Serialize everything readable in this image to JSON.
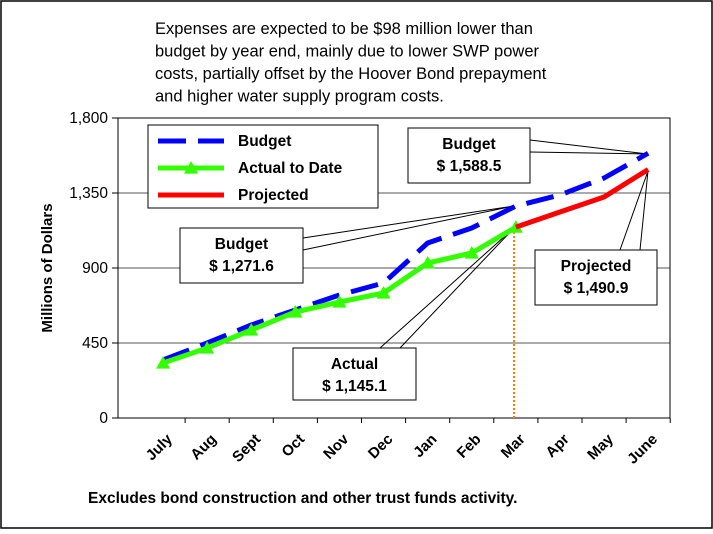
{
  "chart_data": {
    "type": "line",
    "title": [
      "Expenses are expected to be $98 million lower than",
      "budget by year end, mainly due to lower SWP power",
      "costs, partially offset by the Hoover Bond prepayment",
      "and higher water supply program costs."
    ],
    "y_label": "Millions of Dollars",
    "footnote": "Excludes bond construction and other trust funds activity.",
    "categories": [
      "July",
      "Aug",
      "Sept",
      "Oct",
      "Nov",
      "Dec",
      "Jan",
      "Feb",
      "Mar",
      "Apr",
      "May",
      "June"
    ],
    "ylim": [
      0,
      1800
    ],
    "yticks": [
      0,
      450,
      900,
      {
        "value": 1350,
        "label": "1,350"
      },
      {
        "value": 1800,
        "label": "1,800"
      }
    ],
    "grid": true,
    "series": [
      {
        "name": "Budget",
        "color": "#0000ff",
        "dashed": true,
        "values": [
          348,
          450,
          558,
          648,
          738,
          810,
          1050,
          1140,
          1271.6,
          1338,
          1440,
          1588.5
        ]
      },
      {
        "name": "Actual to Date",
        "color": "#33ff00",
        "marker": "triangle",
        "values": [
          330,
          420,
          528,
          636,
          696,
          750,
          930,
          990,
          1145.1,
          null,
          null,
          null
        ]
      },
      {
        "name": "Projected",
        "color": "#ff0000",
        "values": [
          null,
          null,
          null,
          null,
          null,
          null,
          null,
          null,
          1145.1,
          1236,
          1326,
          1490.9
        ]
      }
    ],
    "annotations": [
      {
        "title": "Budget",
        "text": "$ 1,588.5"
      },
      {
        "title": "Budget",
        "text": "$ 1,271.6"
      },
      {
        "title": "Actual",
        "text": "$ 1,145.1"
      },
      {
        "title": "Projected",
        "text": "$ 1,490.9"
      }
    ]
  }
}
